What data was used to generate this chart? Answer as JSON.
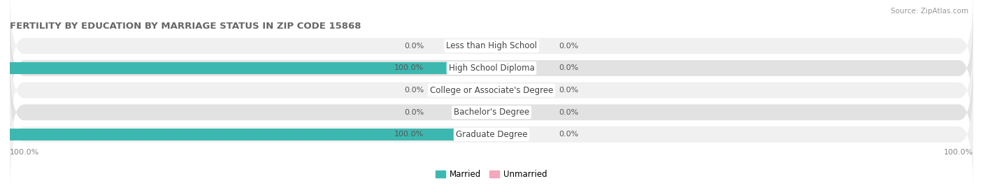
{
  "title": "FERTILITY BY EDUCATION BY MARRIAGE STATUS IN ZIP CODE 15868",
  "source": "Source: ZipAtlas.com",
  "categories": [
    "Less than High School",
    "High School Diploma",
    "College or Associate's Degree",
    "Bachelor's Degree",
    "Graduate Degree"
  ],
  "married_values": [
    0.0,
    100.0,
    0.0,
    0.0,
    100.0
  ],
  "unmarried_values": [
    0.0,
    0.0,
    0.0,
    0.0,
    0.0
  ],
  "married_color": "#3db8b0",
  "unmarried_color": "#f4a8bb",
  "row_bg_even": "#f0f0f0",
  "row_bg_odd": "#e2e2e2",
  "label_bg": "#ffffff",
  "title_fontsize": 9.5,
  "cat_fontsize": 8.5,
  "val_fontsize": 8.0,
  "legend_fontsize": 8.5,
  "tick_fontsize": 8.0,
  "ylabel_married": "Married",
  "ylabel_unmarried": "Unmarried",
  "bottom_left_label": "100.0%",
  "bottom_right_label": "100.0%"
}
